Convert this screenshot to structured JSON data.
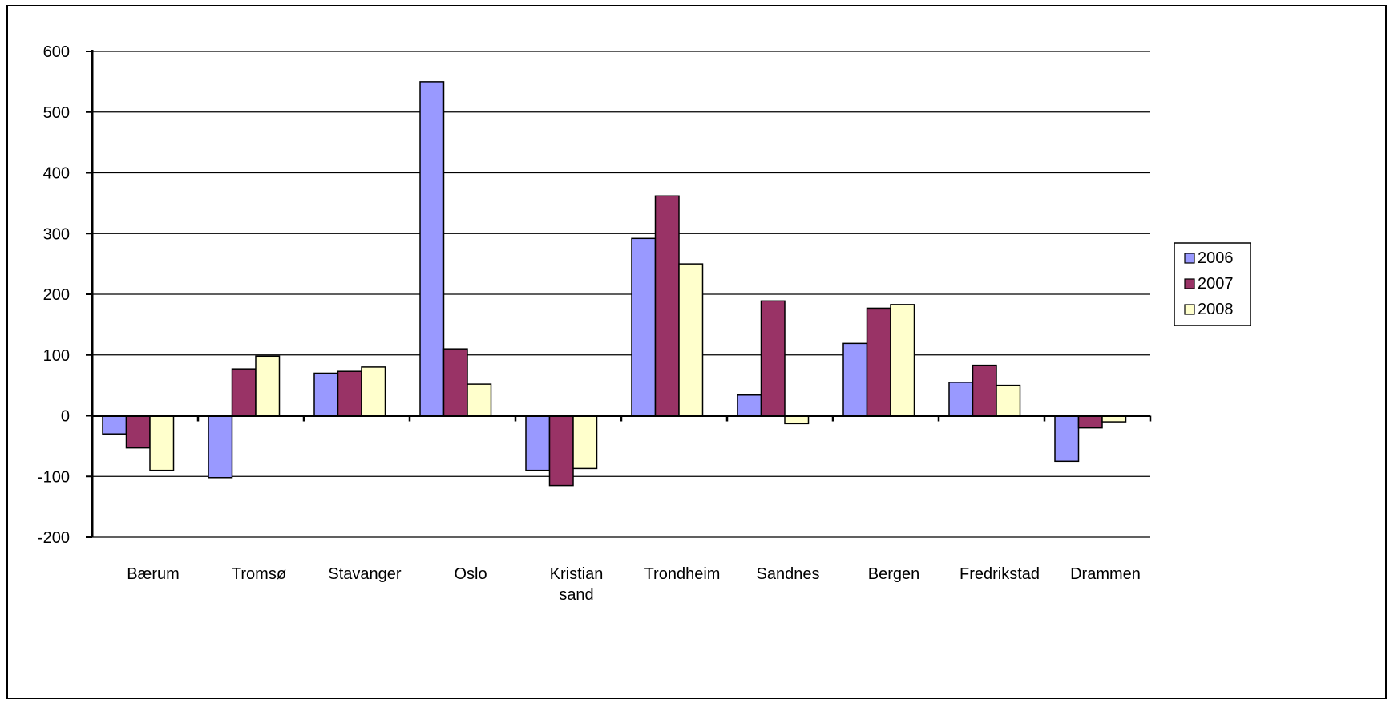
{
  "chart_data": {
    "type": "bar",
    "categories": [
      "Bærum",
      "Tromsø",
      "Stavanger",
      "Oslo",
      "Kristian sand",
      "Trondheim",
      "Sandnes",
      "Bergen",
      "Fredrikstad",
      "Drammen"
    ],
    "category_lines": [
      [
        "Bærum"
      ],
      [
        "Tromsø"
      ],
      [
        "Stavanger"
      ],
      [
        "Oslo"
      ],
      [
        "Kristian",
        "sand"
      ],
      [
        "Trondheim"
      ],
      [
        "Sandnes"
      ],
      [
        "Bergen"
      ],
      [
        "Fredrikstad"
      ],
      [
        "Drammen"
      ]
    ],
    "series": [
      {
        "name": "2006",
        "color": "#9999ff",
        "values": [
          -30,
          -102,
          70,
          550,
          -90,
          292,
          34,
          119,
          55,
          -75
        ]
      },
      {
        "name": "2007",
        "color": "#993366",
        "values": [
          -53,
          77,
          73,
          110,
          -115,
          362,
          189,
          177,
          83,
          -20
        ]
      },
      {
        "name": "2008",
        "color": "#ffffcc",
        "values": [
          -90,
          98,
          80,
          52,
          -87,
          250,
          -13,
          183,
          50,
          -10
        ]
      }
    ],
    "yticks": [
      600,
      500,
      400,
      300,
      200,
      100,
      0,
      -100,
      -200
    ],
    "ylim": [
      -200,
      600
    ],
    "grid": true,
    "legend_position": "right",
    "title": "",
    "xlabel": "",
    "ylabel": ""
  }
}
